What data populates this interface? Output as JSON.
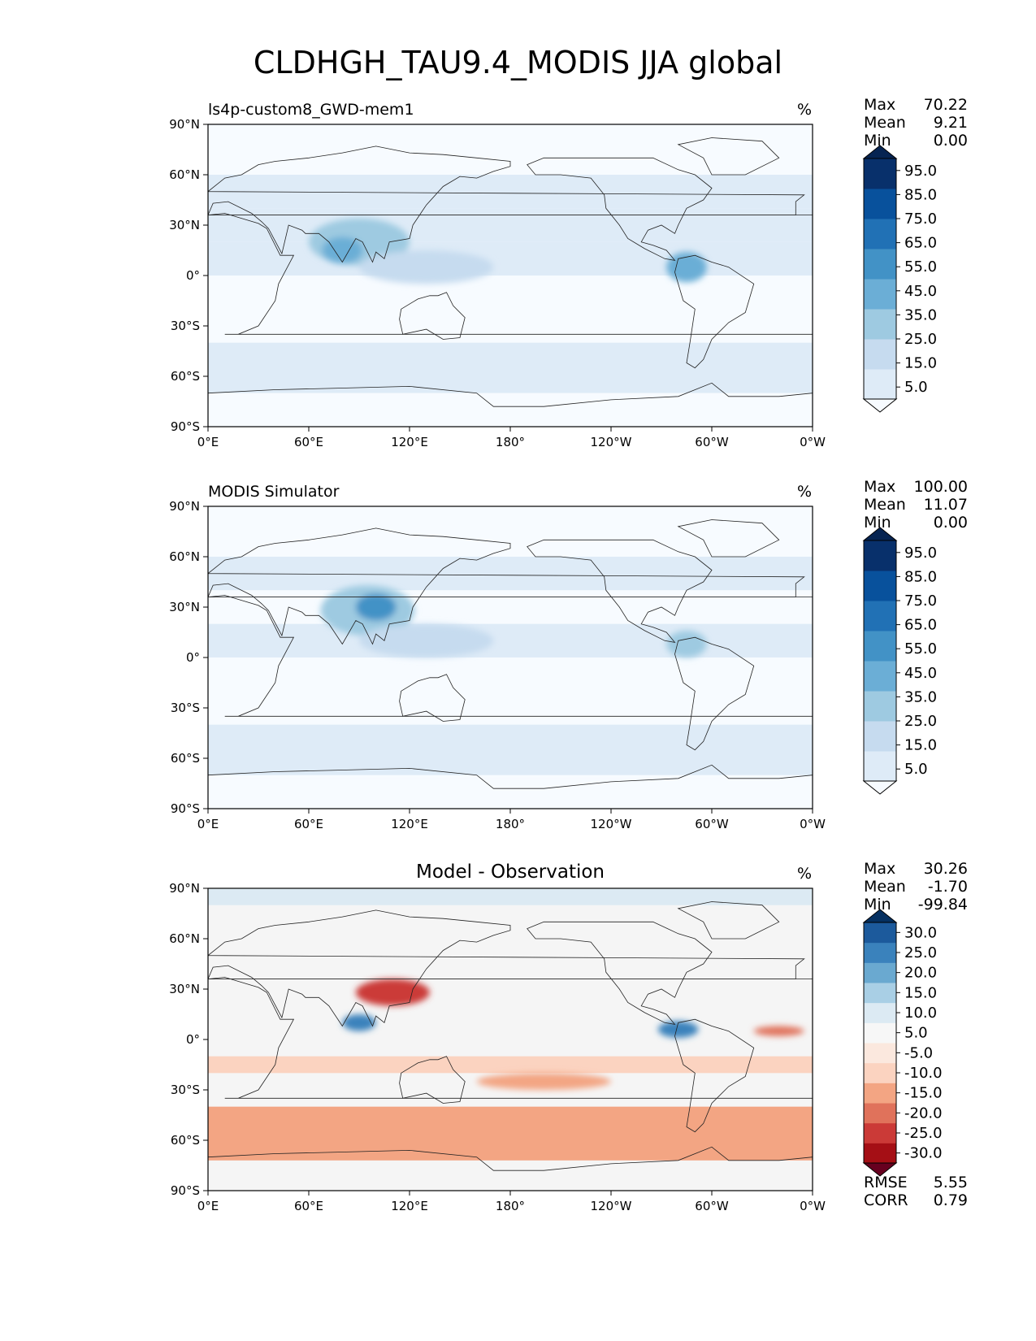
{
  "figure_title": "CLDHGH_TAU9.4_MODIS JJA global",
  "panels": [
    {
      "left_title": "ls4p-custom8_GWD-mem1",
      "center_title": "",
      "units": "%",
      "stats": [
        {
          "label": "Max",
          "value": "70.22"
        },
        {
          "label": "Mean",
          "value": "9.21"
        },
        {
          "label": "Min",
          "value": "0.00"
        }
      ]
    },
    {
      "left_title": "MODIS Simulator",
      "center_title": "",
      "units": "%",
      "stats": [
        {
          "label": "Max",
          "value": "100.00"
        },
        {
          "label": "Mean",
          "value": "11.07"
        },
        {
          "label": "Min",
          "value": "0.00"
        }
      ]
    },
    {
      "left_title": "",
      "center_title": "Model - Observation",
      "units": "%",
      "stats": [
        {
          "label": "Max",
          "value": "30.26"
        },
        {
          "label": "Mean",
          "value": "-1.70"
        },
        {
          "label": "Min",
          "value": "-99.84"
        }
      ],
      "footer_stats": [
        {
          "label": "RMSE",
          "value": "5.55"
        },
        {
          "label": "CORR",
          "value": "0.79"
        }
      ]
    }
  ],
  "chart_data": [
    {
      "type": "heatmap",
      "title": "ls4p-custom8_GWD-mem1",
      "units": "%",
      "x_ticks": [
        "0°E",
        "60°E",
        "120°E",
        "180°",
        "120°W",
        "60°W",
        "0°W"
      ],
      "y_ticks": [
        "90°N",
        "60°N",
        "30°N",
        "0°",
        "30°S",
        "60°S",
        "90°S"
      ],
      "xlim": [
        0,
        360
      ],
      "ylim": [
        -90,
        90
      ],
      "colorbar": {
        "levels": [
          0,
          10,
          20,
          30,
          40,
          50,
          60,
          70,
          80,
          90,
          100
        ],
        "labels": [
          "5.0",
          "15.0",
          "25.0",
          "35.0",
          "45.0",
          "55.0",
          "65.0",
          "75.0",
          "85.0",
          "95.0"
        ],
        "colors": [
          "#f7fbff",
          "#deebf7",
          "#c6dbef",
          "#9ecae1",
          "#6baed6",
          "#4292c6",
          "#2171b5",
          "#08519c",
          "#08306b",
          "#062452"
        ],
        "extend": "both"
      },
      "bands": [
        {
          "lat": [
            60,
            90
          ],
          "value": 8
        },
        {
          "lat": [
            40,
            60
          ],
          "value": 14
        },
        {
          "lat": [
            20,
            40
          ],
          "value": 10
        },
        {
          "lat": [
            0,
            20
          ],
          "value": 14
        },
        {
          "lat": [
            -15,
            0
          ],
          "value": 6
        },
        {
          "lat": [
            -40,
            -15
          ],
          "value": 4
        },
        {
          "lat": [
            -70,
            -40
          ],
          "value": 12
        },
        {
          "lat": [
            -90,
            -70
          ],
          "value": 6
        }
      ],
      "blobs": [
        {
          "lon": 90,
          "lat": 20,
          "rx": 30,
          "ry": 14,
          "value": 30
        },
        {
          "lon": 80,
          "lat": 15,
          "rx": 12,
          "ry": 8,
          "value": 45
        },
        {
          "lon": 285,
          "lat": 5,
          "rx": 12,
          "ry": 9,
          "value": 40
        },
        {
          "lon": 130,
          "lat": 5,
          "rx": 40,
          "ry": 10,
          "value": 20
        }
      ]
    },
    {
      "type": "heatmap",
      "title": "MODIS Simulator",
      "units": "%",
      "x_ticks": [
        "0°E",
        "60°E",
        "120°E",
        "180°",
        "120°W",
        "60°W",
        "0°W"
      ],
      "y_ticks": [
        "90°N",
        "60°N",
        "30°N",
        "0°",
        "30°S",
        "60°S",
        "90°S"
      ],
      "xlim": [
        0,
        360
      ],
      "ylim": [
        -90,
        90
      ],
      "colorbar": {
        "levels": [
          0,
          10,
          20,
          30,
          40,
          50,
          60,
          70,
          80,
          90,
          100
        ],
        "labels": [
          "5.0",
          "15.0",
          "25.0",
          "35.0",
          "45.0",
          "55.0",
          "65.0",
          "75.0",
          "85.0",
          "95.0"
        ],
        "colors": [
          "#f7fbff",
          "#deebf7",
          "#c6dbef",
          "#9ecae1",
          "#6baed6",
          "#4292c6",
          "#2171b5",
          "#08519c",
          "#08306b",
          "#062452"
        ],
        "extend": "both"
      },
      "bands": [
        {
          "lat": [
            60,
            90
          ],
          "value": 4
        },
        {
          "lat": [
            40,
            60
          ],
          "value": 14
        },
        {
          "lat": [
            20,
            40
          ],
          "value": 8
        },
        {
          "lat": [
            0,
            20
          ],
          "value": 16
        },
        {
          "lat": [
            -15,
            0
          ],
          "value": 8
        },
        {
          "lat": [
            -40,
            -15
          ],
          "value": 8
        },
        {
          "lat": [
            -70,
            -40
          ],
          "value": 16
        },
        {
          "lat": [
            -90,
            -72
          ],
          "value": 0
        }
      ],
      "blobs": [
        {
          "lon": 95,
          "lat": 28,
          "rx": 28,
          "ry": 15,
          "value": 35
        },
        {
          "lon": 100,
          "lat": 30,
          "rx": 12,
          "ry": 8,
          "value": 50
        },
        {
          "lon": 285,
          "lat": 8,
          "rx": 12,
          "ry": 8,
          "value": 30
        },
        {
          "lon": 130,
          "lat": 10,
          "rx": 40,
          "ry": 10,
          "value": 22
        }
      ]
    },
    {
      "type": "heatmap",
      "title": "Model - Observation",
      "units": "%",
      "x_ticks": [
        "0°E",
        "60°E",
        "120°E",
        "180°",
        "120°W",
        "60°W",
        "0°W"
      ],
      "y_ticks": [
        "90°N",
        "60°N",
        "30°N",
        "0°",
        "30°S",
        "60°S",
        "90°S"
      ],
      "xlim": [
        0,
        360
      ],
      "ylim": [
        -90,
        90
      ],
      "colorbar": {
        "levels": [
          -35,
          -30,
          -25,
          -20,
          -15,
          -10,
          -5,
          0,
          5,
          10,
          15,
          20,
          25,
          30,
          35
        ],
        "labels": [
          "-30.0",
          "-25.0",
          "-20.0",
          "-15.0",
          "-10.0",
          "-5.0",
          "5.0",
          "10.0",
          "15.0",
          "20.0",
          "25.0",
          "30.0"
        ],
        "colors": [
          "#67001f",
          "#a50f15",
          "#cb3a37",
          "#e0725b",
          "#f3a583",
          "#fbd3c0",
          "#fbe8de",
          "#f7f7f7",
          "#dceaf3",
          "#a9cfe5",
          "#6aa9d0",
          "#3a82bc",
          "#1c5a9c",
          "#053061"
        ],
        "extend": "both"
      },
      "bands": [
        {
          "lat": [
            80,
            90
          ],
          "value": 7
        },
        {
          "lat": [
            -72,
            -40
          ],
          "value": -12
        },
        {
          "lat": [
            -20,
            -10
          ],
          "value": -6
        }
      ],
      "blobs": [
        {
          "lon": 110,
          "lat": 28,
          "rx": 22,
          "ry": 8,
          "value": -22
        },
        {
          "lon": 90,
          "lat": 10,
          "rx": 10,
          "ry": 5,
          "value": 22
        },
        {
          "lon": 280,
          "lat": 6,
          "rx": 12,
          "ry": 5,
          "value": 22
        },
        {
          "lon": 340,
          "lat": 5,
          "rx": 15,
          "ry": 3,
          "value": -18
        },
        {
          "lon": 200,
          "lat": -25,
          "rx": 40,
          "ry": 5,
          "value": -12
        }
      ]
    }
  ]
}
